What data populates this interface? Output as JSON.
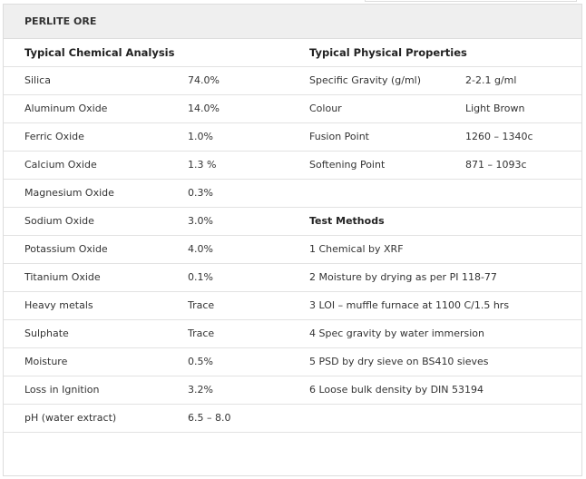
{
  "header": {
    "title": "PERLITE ORE"
  },
  "table": {
    "headings": [
      "Typical Chemical Analysis",
      "Typical Physical Properties"
    ],
    "rows": [
      {
        "analysis": [
          "Silica",
          "74.0%"
        ],
        "physical": [
          "Specific Gravity (g/ml)",
          "2-2.1 g/ml"
        ]
      },
      {
        "analysis": [
          "Aluminum Oxide",
          "14.0%"
        ],
        "physical": [
          "Colour",
          "Light Brown"
        ]
      },
      {
        "analysis": [
          "Ferric Oxide",
          "1.0%"
        ],
        "physical": [
          "Fusion Point",
          "1260 – 1340c"
        ]
      },
      {
        "analysis": [
          "Calcium Oxide",
          "1.3 %"
        ],
        "physical": [
          "Softening Point",
          "871 – 1093c"
        ]
      },
      {
        "analysis": [
          "Magnesium Oxide",
          "0.3%"
        ]
      },
      {
        "analysis": [
          "Sodium Oxide",
          "3.0%"
        ],
        "heading": "Test Methods"
      },
      {
        "analysis": [
          "Potassium Oxide",
          "4.0%"
        ],
        "note": "1 Chemical by XRF"
      },
      {
        "analysis": [
          "Titanium Oxide",
          "0.1%"
        ],
        "note": "2 Moisture by drying as per PI 118-77"
      },
      {
        "analysis": [
          "Heavy metals",
          "Trace"
        ],
        "note": "3 LOI – muffle furnace at 1100 C/1.5 hrs"
      },
      {
        "analysis": [
          "Sulphate",
          "Trace"
        ],
        "note": "4 Spec gravity by water immersion"
      },
      {
        "analysis": [
          "Moisture",
          "0.5%"
        ],
        "note": "5 PSD by dry sieve on BS410 sieves"
      },
      {
        "analysis": [
          "Loss in Ignition",
          "3.2%"
        ],
        "note": "6 Loose bulk density by DIN 53194"
      },
      {
        "analysis": [
          "pH (water extract)",
          "6.5 – 8.0"
        ]
      }
    ]
  }
}
